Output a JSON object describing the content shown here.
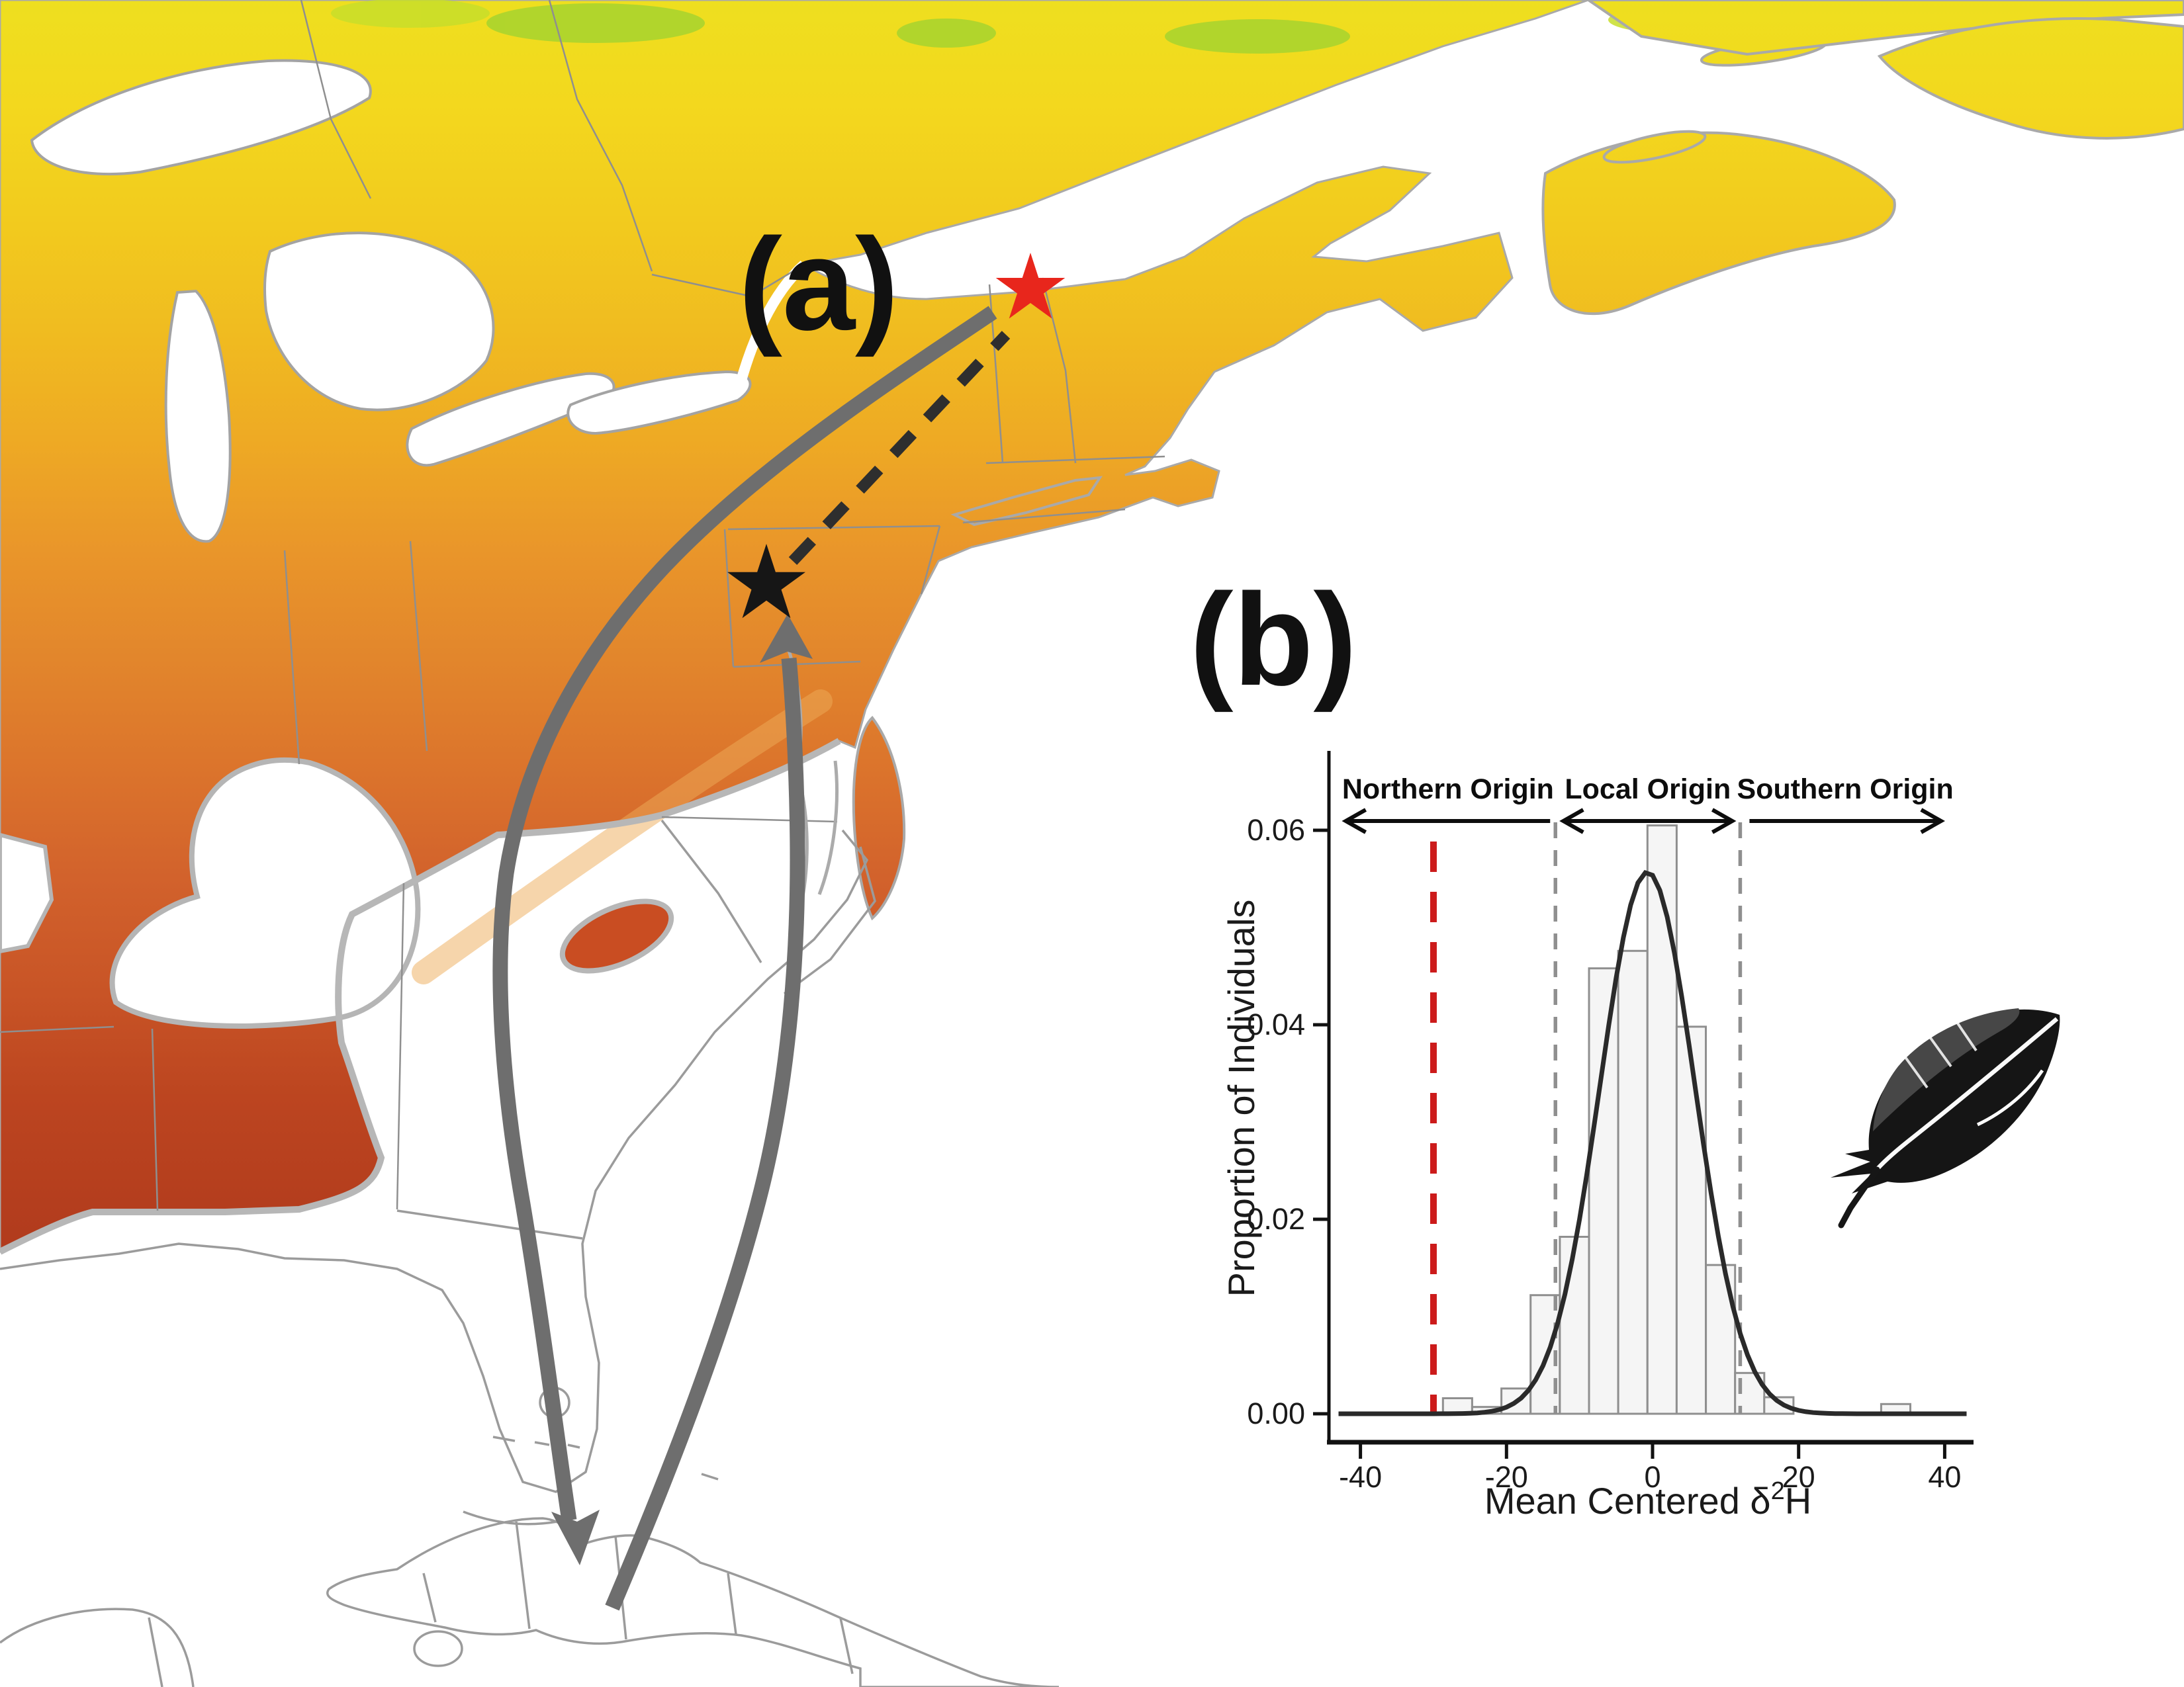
{
  "figure": {
    "panel_a_label": "(a)",
    "panel_b_label": "(b)"
  },
  "map": {
    "label": "(a)",
    "markers": [
      {
        "name": "northern-breeding-site-star",
        "shape": "star",
        "color": "#e8261c"
      },
      {
        "name": "local-sampling-site-star",
        "shape": "star",
        "color": "#161616"
      }
    ],
    "routes": [
      {
        "name": "fall-migration-arc",
        "color": "#6e6e6e"
      },
      {
        "name": "spring-migration-arc",
        "color": "#6e6e6e"
      },
      {
        "name": "inferred-connection-dashed-line",
        "color": "#2e2e2e"
      }
    ],
    "colors": {
      "isoscape_north": "#eedf1f",
      "isoscape_mid": "#e2862c",
      "isoscape_south": "#ae381c",
      "water_and_unmapped": "#ffffff",
      "boundary_gray": "#9b9b9b"
    }
  },
  "chart_data": {
    "type": "bar",
    "title": "",
    "ylabel": "Proportion of Individuals",
    "xlabel": {
      "prefix": "Mean Centered δ",
      "sup": "2",
      "suffix": "H"
    },
    "xlim": [
      -44,
      44
    ],
    "ylim": [
      0,
      0.068
    ],
    "x_ticks": [
      -40,
      -20,
      0,
      20,
      40
    ],
    "y_ticks": [
      "0.00",
      "0.02",
      "0.04",
      "0.06"
    ],
    "grid": "off",
    "bin_width": 4,
    "bars": [
      {
        "x0": -28.7,
        "h": 0.0016
      },
      {
        "x0": -24.7,
        "h": 0.0007
      },
      {
        "x0": -20.7,
        "h": 0.0026
      },
      {
        "x0": -16.7,
        "h": 0.0122
      },
      {
        "x0": -12.7,
        "h": 0.0182
      },
      {
        "x0": -8.7,
        "h": 0.0458
      },
      {
        "x0": -4.7,
        "h": 0.0476
      },
      {
        "x0": -0.7,
        "h": 0.0605
      },
      {
        "x0": 3.3,
        "h": 0.0398
      },
      {
        "x0": 7.3,
        "h": 0.0153
      },
      {
        "x0": 11.3,
        "h": 0.0042
      },
      {
        "x0": 15.3,
        "h": 0.0017
      },
      {
        "x0": 31.3,
        "h": 0.001
      }
    ],
    "curve": {
      "type": "gaussian",
      "peak": 0.0557,
      "mean": -0.7,
      "sd": 6.5,
      "color": "#2a2a2a"
    },
    "reference_lines": [
      {
        "name": "northern-origin-threshold-line",
        "x": -30,
        "color": "#cc1b1b",
        "style": "dashed-bold"
      },
      {
        "name": "local-origin-lower-bound-line",
        "x": -13.3,
        "color": "#8f8f8f",
        "style": "dashed"
      },
      {
        "name": "local-origin-upper-bound-line",
        "x": 12.0,
        "color": "#8f8f8f",
        "style": "dashed"
      }
    ],
    "regions": [
      {
        "label": "Northern Origin",
        "arrow": "left",
        "x0": -42.0,
        "x1": -13.3
      },
      {
        "label": "Local Origin",
        "arrow": "both",
        "x0": -13.3,
        "x1": 12.0
      },
      {
        "label": "Southern Origin",
        "arrow": "right",
        "x0": 12.0,
        "x1": 39.5
      }
    ]
  }
}
